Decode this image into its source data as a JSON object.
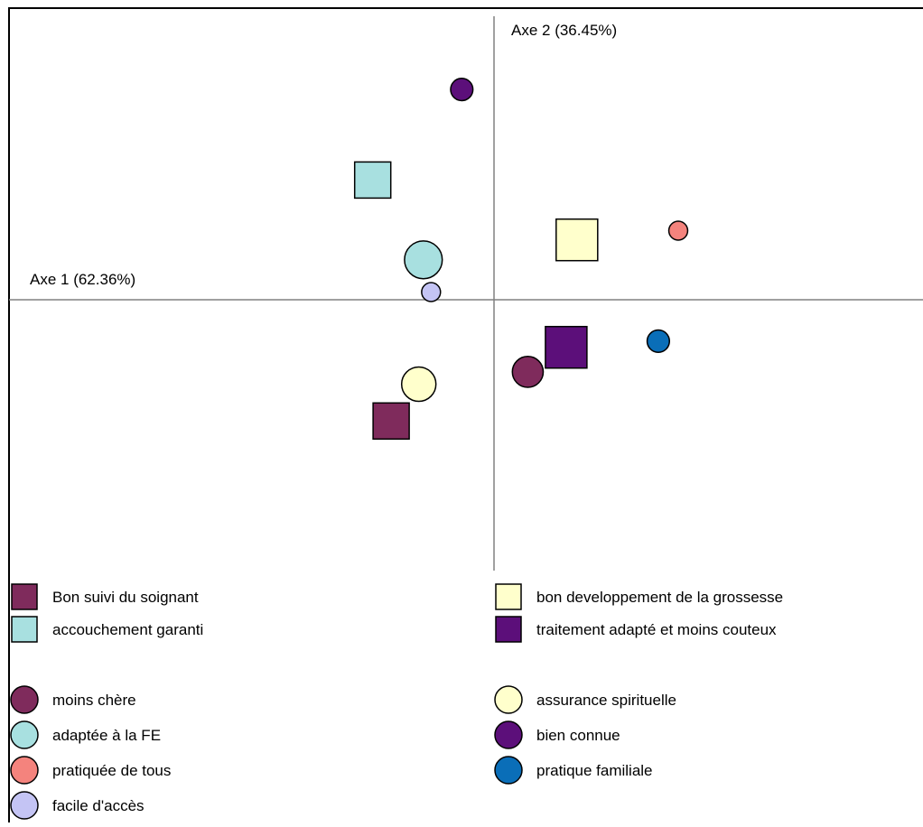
{
  "chart_data": {
    "type": "scatter",
    "title": "",
    "xlabel": "Axe 1 (62.36%)",
    "ylabel": "Axe 2 (36.45%)",
    "xlim": [
      -2.58,
      2.33
    ],
    "ylim": [
      -2.42,
      2.88
    ],
    "series": [
      {
        "name": "Bon suivi du soignant",
        "shape": "square",
        "size": 1.0,
        "color": "#7f2b5c",
        "x": -0.67,
        "y": -0.79
      },
      {
        "name": "bon developpement de la grossesse",
        "shape": "square",
        "size": 1.15,
        "color": "#ffffcc",
        "x": 0.54,
        "y": 0.39
      },
      {
        "name": "accouchement garanti",
        "shape": "square",
        "size": 1.0,
        "color": "#a8e0e0",
        "x": -0.79,
        "y": 0.78
      },
      {
        "name": "traitement adapté et moins couteux",
        "shape": "square",
        "size": 1.15,
        "color": "#5c0f7a",
        "x": 0.47,
        "y": -0.31
      },
      {
        "name": "moins chère",
        "shape": "circle",
        "size": 0.9,
        "color": "#7f2b5c",
        "x": 0.22,
        "y": -0.47
      },
      {
        "name": "assurance spirituelle",
        "shape": "circle",
        "size": 1.0,
        "color": "#ffffcc",
        "x": -0.49,
        "y": -0.55
      },
      {
        "name": "adaptée à la FE",
        "shape": "circle",
        "size": 1.1,
        "color": "#a8e0e0",
        "x": -0.46,
        "y": 0.26
      },
      {
        "name": "bien connue",
        "shape": "circle",
        "size": 0.65,
        "color": "#5c0f7a",
        "x": -0.21,
        "y": 1.37
      },
      {
        "name": "pratiquée de tous",
        "shape": "circle",
        "size": 0.55,
        "color": "#f4837d",
        "x": 1.2,
        "y": 0.45
      },
      {
        "name": "pratique familiale",
        "shape": "circle",
        "size": 0.65,
        "color": "#0a6eb8",
        "x": 1.07,
        "y": -0.27
      },
      {
        "name": "facile d'accès",
        "shape": "circle",
        "size": 0.55,
        "color": "#c4c4f4",
        "x": -0.41,
        "y": 0.05
      }
    ],
    "legend": {
      "placement": "bottom",
      "squares": [
        "Bon suivi du soignant",
        "bon developpement de la grossesse",
        "accouchement garanti",
        "traitement adapté et moins couteux"
      ],
      "circles": [
        "moins chère",
        "assurance spirituelle",
        "adaptée à la FE",
        "bien connue",
        "pratiquée de tous",
        "pratique familiale",
        "facile d'accès"
      ]
    },
    "grid": false
  }
}
